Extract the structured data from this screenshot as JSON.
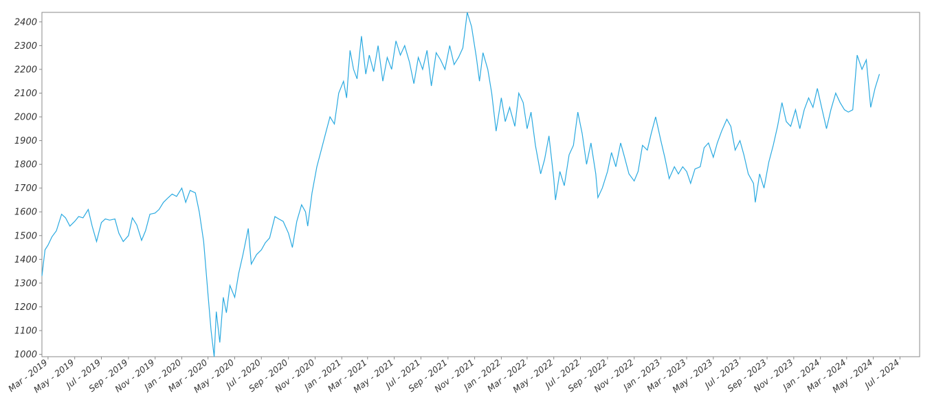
{
  "chart_data": {
    "type": "line",
    "title": "",
    "xlabel": "",
    "ylabel": "",
    "xlim": [
      "2019-02-15",
      "2024-08-15"
    ],
    "ylim": [
      990,
      2440
    ],
    "grid": false,
    "legend": "none",
    "line_color": "#29a9e0",
    "y_ticks": [
      1000,
      1100,
      1200,
      1300,
      1400,
      1500,
      1600,
      1700,
      1800,
      1900,
      2000,
      2100,
      2200,
      2300,
      2400
    ],
    "x_ticks": [
      {
        "date": "2019-03-01",
        "label": "Mar - 2019"
      },
      {
        "date": "2019-05-01",
        "label": "May - 2019"
      },
      {
        "date": "2019-07-01",
        "label": "Jul - 2019"
      },
      {
        "date": "2019-09-01",
        "label": "Sep - 2019"
      },
      {
        "date": "2019-11-01",
        "label": "Nov - 2019"
      },
      {
        "date": "2020-01-01",
        "label": "Jan - 2020"
      },
      {
        "date": "2020-03-01",
        "label": "Mar - 2020"
      },
      {
        "date": "2020-05-01",
        "label": "May - 2020"
      },
      {
        "date": "2020-07-01",
        "label": "Jul - 2020"
      },
      {
        "date": "2020-09-01",
        "label": "Sep - 2020"
      },
      {
        "date": "2020-11-01",
        "label": "Nov - 2020"
      },
      {
        "date": "2021-01-01",
        "label": "Jan - 2021"
      },
      {
        "date": "2021-03-01",
        "label": "Mar - 2021"
      },
      {
        "date": "2021-05-01",
        "label": "May - 2021"
      },
      {
        "date": "2021-07-01",
        "label": "Jul - 2021"
      },
      {
        "date": "2021-09-01",
        "label": "Sep - 2021"
      },
      {
        "date": "2021-11-01",
        "label": "Nov - 2021"
      },
      {
        "date": "2022-01-01",
        "label": "Jan - 2022"
      },
      {
        "date": "2022-03-01",
        "label": "Mar - 2022"
      },
      {
        "date": "2022-05-01",
        "label": "May - 2022"
      },
      {
        "date": "2022-07-01",
        "label": "Jul - 2022"
      },
      {
        "date": "2022-09-01",
        "label": "Sep - 2022"
      },
      {
        "date": "2022-11-01",
        "label": "Nov - 2022"
      },
      {
        "date": "2023-01-01",
        "label": "Jan - 2023"
      },
      {
        "date": "2023-03-01",
        "label": "Mar - 2023"
      },
      {
        "date": "2023-05-01",
        "label": "May - 2023"
      },
      {
        "date": "2023-07-01",
        "label": "Jul - 2023"
      },
      {
        "date": "2023-09-01",
        "label": "Sep - 2023"
      },
      {
        "date": "2023-11-01",
        "label": "Nov - 2023"
      },
      {
        "date": "2024-01-01",
        "label": "Jan - 2024"
      },
      {
        "date": "2024-03-01",
        "label": "Mar - 2024"
      },
      {
        "date": "2024-05-01",
        "label": "May - 2024"
      },
      {
        "date": "2024-07-01",
        "label": "Jul - 2024"
      }
    ],
    "series": [
      {
        "points": [
          [
            "2019-02-15",
            1330
          ],
          [
            "2019-02-22",
            1440
          ],
          [
            "2019-03-01",
            1460
          ],
          [
            "2019-03-10",
            1495
          ],
          [
            "2019-03-20",
            1520
          ],
          [
            "2019-04-01",
            1590
          ],
          [
            "2019-04-10",
            1575
          ],
          [
            "2019-04-20",
            1540
          ],
          [
            "2019-05-01",
            1560
          ],
          [
            "2019-05-10",
            1580
          ],
          [
            "2019-05-20",
            1575
          ],
          [
            "2019-06-01",
            1610
          ],
          [
            "2019-06-10",
            1540
          ],
          [
            "2019-06-20",
            1475
          ],
          [
            "2019-07-01",
            1555
          ],
          [
            "2019-07-10",
            1570
          ],
          [
            "2019-07-20",
            1565
          ],
          [
            "2019-08-01",
            1570
          ],
          [
            "2019-08-10",
            1510
          ],
          [
            "2019-08-20",
            1475
          ],
          [
            "2019-09-01",
            1500
          ],
          [
            "2019-09-10",
            1575
          ],
          [
            "2019-09-20",
            1545
          ],
          [
            "2019-10-01",
            1480
          ],
          [
            "2019-10-10",
            1520
          ],
          [
            "2019-10-20",
            1590
          ],
          [
            "2019-11-01",
            1595
          ],
          [
            "2019-11-10",
            1610
          ],
          [
            "2019-11-20",
            1640
          ],
          [
            "2019-12-01",
            1660
          ],
          [
            "2019-12-10",
            1675
          ],
          [
            "2019-12-20",
            1665
          ],
          [
            "2020-01-01",
            1700
          ],
          [
            "2020-01-10",
            1640
          ],
          [
            "2020-01-20",
            1690
          ],
          [
            "2020-02-01",
            1680
          ],
          [
            "2020-02-10",
            1600
          ],
          [
            "2020-02-20",
            1475
          ],
          [
            "2020-03-01",
            1250
          ],
          [
            "2020-03-08",
            1100
          ],
          [
            "2020-03-15",
            990
          ],
          [
            "2020-03-20",
            1180
          ],
          [
            "2020-03-28",
            1050
          ],
          [
            "2020-04-05",
            1240
          ],
          [
            "2020-04-12",
            1175
          ],
          [
            "2020-04-20",
            1290
          ],
          [
            "2020-05-01",
            1240
          ],
          [
            "2020-05-10",
            1340
          ],
          [
            "2020-05-20",
            1420
          ],
          [
            "2020-06-01",
            1530
          ],
          [
            "2020-06-08",
            1380
          ],
          [
            "2020-06-20",
            1420
          ],
          [
            "2020-07-01",
            1440
          ],
          [
            "2020-07-10",
            1470
          ],
          [
            "2020-07-20",
            1490
          ],
          [
            "2020-08-01",
            1580
          ],
          [
            "2020-08-10",
            1570
          ],
          [
            "2020-08-20",
            1560
          ],
          [
            "2020-09-01",
            1510
          ],
          [
            "2020-09-10",
            1450
          ],
          [
            "2020-09-20",
            1560
          ],
          [
            "2020-10-01",
            1630
          ],
          [
            "2020-10-10",
            1600
          ],
          [
            "2020-10-15",
            1540
          ],
          [
            "2020-10-25",
            1680
          ],
          [
            "2020-11-05",
            1790
          ],
          [
            "2020-11-15",
            1860
          ],
          [
            "2020-11-25",
            1930
          ],
          [
            "2020-12-05",
            2000
          ],
          [
            "2020-12-15",
            1970
          ],
          [
            "2020-12-25",
            2100
          ],
          [
            "2021-01-05",
            2150
          ],
          [
            "2021-01-12",
            2080
          ],
          [
            "2021-01-20",
            2280
          ],
          [
            "2021-01-28",
            2200
          ],
          [
            "2021-02-05",
            2160
          ],
          [
            "2021-02-15",
            2340
          ],
          [
            "2021-02-25",
            2180
          ],
          [
            "2021-03-05",
            2260
          ],
          [
            "2021-03-15",
            2190
          ],
          [
            "2021-03-25",
            2300
          ],
          [
            "2021-04-05",
            2150
          ],
          [
            "2021-04-15",
            2250
          ],
          [
            "2021-04-25",
            2200
          ],
          [
            "2021-05-05",
            2320
          ],
          [
            "2021-05-15",
            2260
          ],
          [
            "2021-05-25",
            2300
          ],
          [
            "2021-06-05",
            2230
          ],
          [
            "2021-06-15",
            2140
          ],
          [
            "2021-06-25",
            2250
          ],
          [
            "2021-07-05",
            2200
          ],
          [
            "2021-07-15",
            2280
          ],
          [
            "2021-07-25",
            2130
          ],
          [
            "2021-08-05",
            2270
          ],
          [
            "2021-08-15",
            2240
          ],
          [
            "2021-08-25",
            2200
          ],
          [
            "2021-09-05",
            2300
          ],
          [
            "2021-09-15",
            2220
          ],
          [
            "2021-09-25",
            2250
          ],
          [
            "2021-10-05",
            2290
          ],
          [
            "2021-10-15",
            2440
          ],
          [
            "2021-10-25",
            2380
          ],
          [
            "2021-11-05",
            2250
          ],
          [
            "2021-11-12",
            2150
          ],
          [
            "2021-11-20",
            2270
          ],
          [
            "2021-12-01",
            2200
          ],
          [
            "2021-12-10",
            2100
          ],
          [
            "2021-12-20",
            1940
          ],
          [
            "2022-01-01",
            2080
          ],
          [
            "2022-01-10",
            1980
          ],
          [
            "2022-01-20",
            2040
          ],
          [
            "2022-02-01",
            1960
          ],
          [
            "2022-02-10",
            2100
          ],
          [
            "2022-02-20",
            2060
          ],
          [
            "2022-03-01",
            1950
          ],
          [
            "2022-03-10",
            2020
          ],
          [
            "2022-03-20",
            1880
          ],
          [
            "2022-04-01",
            1760
          ],
          [
            "2022-04-10",
            1820
          ],
          [
            "2022-04-20",
            1920
          ],
          [
            "2022-05-01",
            1740
          ],
          [
            "2022-05-05",
            1650
          ],
          [
            "2022-05-15",
            1770
          ],
          [
            "2022-05-25",
            1710
          ],
          [
            "2022-06-05",
            1840
          ],
          [
            "2022-06-15",
            1880
          ],
          [
            "2022-06-25",
            2020
          ],
          [
            "2022-07-05",
            1930
          ],
          [
            "2022-07-15",
            1800
          ],
          [
            "2022-07-25",
            1890
          ],
          [
            "2022-08-05",
            1760
          ],
          [
            "2022-08-10",
            1660
          ],
          [
            "2022-08-20",
            1700
          ],
          [
            "2022-09-01",
            1770
          ],
          [
            "2022-09-10",
            1850
          ],
          [
            "2022-09-20",
            1790
          ],
          [
            "2022-10-01",
            1890
          ],
          [
            "2022-10-10",
            1830
          ],
          [
            "2022-10-20",
            1760
          ],
          [
            "2022-11-01",
            1730
          ],
          [
            "2022-11-10",
            1770
          ],
          [
            "2022-11-20",
            1880
          ],
          [
            "2022-12-01",
            1860
          ],
          [
            "2022-12-10",
            1930
          ],
          [
            "2022-12-20",
            2000
          ],
          [
            "2023-01-01",
            1900
          ],
          [
            "2023-01-10",
            1830
          ],
          [
            "2023-01-20",
            1740
          ],
          [
            "2023-02-01",
            1790
          ],
          [
            "2023-02-10",
            1760
          ],
          [
            "2023-02-20",
            1790
          ],
          [
            "2023-03-01",
            1770
          ],
          [
            "2023-03-10",
            1720
          ],
          [
            "2023-03-20",
            1780
          ],
          [
            "2023-04-01",
            1790
          ],
          [
            "2023-04-10",
            1870
          ],
          [
            "2023-04-20",
            1890
          ],
          [
            "2023-05-01",
            1830
          ],
          [
            "2023-05-10",
            1890
          ],
          [
            "2023-05-20",
            1940
          ],
          [
            "2023-06-01",
            1990
          ],
          [
            "2023-06-10",
            1960
          ],
          [
            "2023-06-20",
            1860
          ],
          [
            "2023-07-01",
            1900
          ],
          [
            "2023-07-10",
            1840
          ],
          [
            "2023-07-20",
            1760
          ],
          [
            "2023-08-01",
            1720
          ],
          [
            "2023-08-05",
            1640
          ],
          [
            "2023-08-15",
            1760
          ],
          [
            "2023-08-25",
            1700
          ],
          [
            "2023-09-05",
            1810
          ],
          [
            "2023-09-15",
            1880
          ],
          [
            "2023-09-25",
            1960
          ],
          [
            "2023-10-05",
            2060
          ],
          [
            "2023-10-15",
            1980
          ],
          [
            "2023-10-25",
            1960
          ],
          [
            "2023-11-05",
            2030
          ],
          [
            "2023-11-15",
            1950
          ],
          [
            "2023-11-25",
            2030
          ],
          [
            "2023-12-05",
            2080
          ],
          [
            "2023-12-15",
            2040
          ],
          [
            "2023-12-25",
            2120
          ],
          [
            "2024-01-05",
            2030
          ],
          [
            "2024-01-15",
            1950
          ],
          [
            "2024-01-25",
            2030
          ],
          [
            "2024-02-05",
            2100
          ],
          [
            "2024-02-15",
            2060
          ],
          [
            "2024-02-25",
            2030
          ],
          [
            "2024-03-05",
            2020
          ],
          [
            "2024-03-15",
            2030
          ],
          [
            "2024-03-25",
            2260
          ],
          [
            "2024-04-05",
            2200
          ],
          [
            "2024-04-15",
            2240
          ],
          [
            "2024-04-25",
            2040
          ],
          [
            "2024-05-05",
            2120
          ],
          [
            "2024-05-15",
            2180
          ]
        ]
      }
    ]
  }
}
